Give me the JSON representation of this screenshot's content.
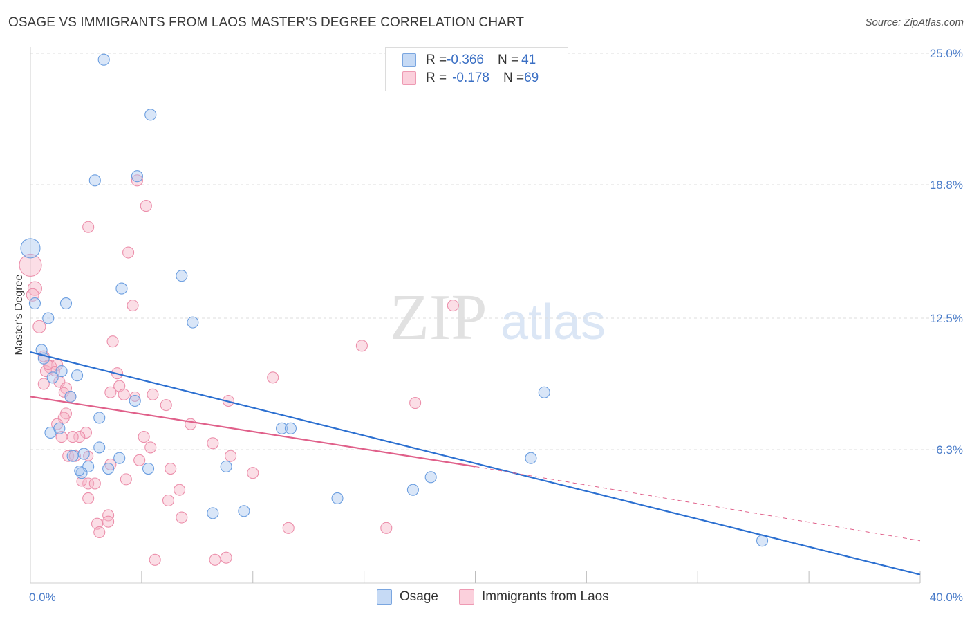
{
  "header": {
    "title": "OSAGE VS IMMIGRANTS FROM LAOS MASTER'S DEGREE CORRELATION CHART",
    "source": "Source: ZipAtlas.com"
  },
  "watermark": {
    "zip": "ZIP",
    "atlas": "atlas"
  },
  "legend_top": {
    "rows": [
      {
        "r_label": "R = ",
        "r_value": "-0.366",
        "n_label": "N = ",
        "n_value": "41"
      },
      {
        "r_label": "R = ",
        "r_value": "-0.178",
        "n_label": "N = ",
        "n_value": "69"
      }
    ]
  },
  "colors": {
    "osage_fill": "#aac8f0",
    "osage_stroke": "#6b9ee0",
    "osage_line": "#2b6fd0",
    "laos_fill": "#f7b6c8",
    "laos_stroke": "#ec8fab",
    "laos_line": "#e0608a"
  },
  "chart_data": {
    "type": "scatter",
    "title": "OSAGE VS IMMIGRANTS FROM LAOS MASTER'S DEGREE CORRELATION CHART",
    "xlabel": "",
    "ylabel": "Master's Degree",
    "xlim": [
      0,
      40
    ],
    "ylim": [
      0,
      25.5
    ],
    "x_tick_labels": [
      "0.0%",
      "40.0%"
    ],
    "y_ticks": [
      6.3,
      12.5,
      18.8,
      25.0
    ],
    "y_tick_labels": [
      "6.3%",
      "12.5%",
      "18.8%",
      "25.0%"
    ],
    "grid": true,
    "legend_position": "bottom",
    "series": [
      {
        "name": "Osage",
        "r": -0.366,
        "n": 41,
        "trend": {
          "x0": 0,
          "y0": 10.9,
          "x1": 40,
          "y1": 0.4
        },
        "points": [
          [
            0,
            15.8,
            14
          ],
          [
            3.3,
            24.7,
            8
          ],
          [
            5.4,
            22.1,
            8
          ],
          [
            2.9,
            19.0,
            8
          ],
          [
            4.8,
            19.2,
            8
          ],
          [
            6.8,
            14.5,
            8
          ],
          [
            4.1,
            13.9,
            8
          ],
          [
            1.6,
            13.2,
            8
          ],
          [
            0.2,
            13.2,
            8
          ],
          [
            0.8,
            12.5,
            8
          ],
          [
            7.3,
            12.3,
            8
          ],
          [
            0.5,
            11.0,
            8
          ],
          [
            0.6,
            10.6,
            8
          ],
          [
            1.4,
            10.0,
            8
          ],
          [
            2.1,
            9.8,
            8
          ],
          [
            1.0,
            9.7,
            8
          ],
          [
            1.8,
            8.8,
            8
          ],
          [
            4.7,
            8.6,
            8
          ],
          [
            23.1,
            9.0,
            8
          ],
          [
            3.1,
            7.8,
            8
          ],
          [
            0.9,
            7.1,
            8
          ],
          [
            1.3,
            7.3,
            8
          ],
          [
            11.3,
            7.3,
            8
          ],
          [
            11.7,
            7.3,
            8
          ],
          [
            3.1,
            6.4,
            8
          ],
          [
            2.4,
            6.1,
            8
          ],
          [
            1.9,
            6.0,
            8
          ],
          [
            4.0,
            5.9,
            8
          ],
          [
            22.5,
            5.9,
            8
          ],
          [
            2.6,
            5.5,
            8
          ],
          [
            3.5,
            5.4,
            8
          ],
          [
            5.3,
            5.4,
            8
          ],
          [
            8.8,
            5.5,
            8
          ],
          [
            2.3,
            5.2,
            8
          ],
          [
            18.0,
            5.0,
            8
          ],
          [
            17.2,
            4.4,
            8
          ],
          [
            13.8,
            4.0,
            8
          ],
          [
            8.2,
            3.3,
            8
          ],
          [
            9.6,
            3.4,
            8
          ],
          [
            32.9,
            2.0,
            8
          ],
          [
            2.2,
            5.3,
            7
          ]
        ]
      },
      {
        "name": "Immigrants from Laos",
        "r": -0.178,
        "n": 69,
        "trend": {
          "x0": 0,
          "y0": 8.8,
          "x1": 20,
          "y1": 5.5
        },
        "trend_dashed": {
          "x0": 20,
          "y0": 5.5,
          "x1": 40,
          "y1": 2.0
        },
        "points": [
          [
            0,
            15.0,
            16
          ],
          [
            0.2,
            13.9,
            10
          ],
          [
            0.1,
            13.6,
            9
          ],
          [
            4.8,
            19.0,
            8
          ],
          [
            5.2,
            17.8,
            8
          ],
          [
            2.6,
            16.8,
            8
          ],
          [
            4.4,
            15.6,
            8
          ],
          [
            4.6,
            13.1,
            8
          ],
          [
            19.0,
            13.1,
            8
          ],
          [
            0.4,
            12.1,
            9
          ],
          [
            3.7,
            11.4,
            8
          ],
          [
            14.9,
            11.2,
            8
          ],
          [
            0.6,
            10.7,
            8
          ],
          [
            1.2,
            10.3,
            8
          ],
          [
            0.9,
            10.2,
            9
          ],
          [
            0.7,
            10.0,
            8
          ],
          [
            3.9,
            9.9,
            8
          ],
          [
            10.9,
            9.7,
            8
          ],
          [
            1.3,
            9.5,
            8
          ],
          [
            0.6,
            9.4,
            8
          ],
          [
            4.0,
            9.3,
            8
          ],
          [
            1.6,
            9.2,
            8
          ],
          [
            3.6,
            9.0,
            8
          ],
          [
            4.2,
            8.9,
            8
          ],
          [
            5.5,
            8.9,
            8
          ],
          [
            1.8,
            8.8,
            8
          ],
          [
            8.9,
            8.6,
            8
          ],
          [
            17.3,
            8.5,
            8
          ],
          [
            6.1,
            8.4,
            8
          ],
          [
            1.6,
            8.0,
            8
          ],
          [
            1.5,
            7.8,
            8
          ],
          [
            1.2,
            7.5,
            8
          ],
          [
            7.2,
            7.5,
            8
          ],
          [
            2.5,
            7.1,
            8
          ],
          [
            1.4,
            6.9,
            8
          ],
          [
            2.2,
            6.9,
            8
          ],
          [
            1.9,
            6.9,
            8
          ],
          [
            5.1,
            6.9,
            8
          ],
          [
            8.2,
            6.6,
            8
          ],
          [
            5.4,
            6.4,
            8
          ],
          [
            1.7,
            6.0,
            8
          ],
          [
            2.0,
            6.0,
            8
          ],
          [
            9.0,
            6.0,
            8
          ],
          [
            4.9,
            5.8,
            8
          ],
          [
            3.6,
            5.6,
            8
          ],
          [
            6.3,
            5.4,
            8
          ],
          [
            10.0,
            5.2,
            8
          ],
          [
            4.3,
            4.9,
            8
          ],
          [
            2.6,
            4.7,
            8
          ],
          [
            2.9,
            4.7,
            8
          ],
          [
            6.7,
            4.4,
            8
          ],
          [
            2.6,
            4.0,
            8
          ],
          [
            6.2,
            3.9,
            8
          ],
          [
            3.5,
            3.2,
            8
          ],
          [
            3.5,
            2.9,
            8
          ],
          [
            3.0,
            2.8,
            8
          ],
          [
            6.8,
            3.1,
            8
          ],
          [
            11.6,
            2.6,
            8
          ],
          [
            16.0,
            2.6,
            8
          ],
          [
            3.1,
            2.4,
            8
          ],
          [
            5.6,
            1.1,
            8
          ],
          [
            8.3,
            1.1,
            8
          ],
          [
            8.8,
            1.2,
            8
          ],
          [
            2.6,
            6.0,
            7
          ],
          [
            1.1,
            10.0,
            7
          ],
          [
            0.8,
            10.3,
            7
          ],
          [
            2.3,
            4.8,
            7
          ],
          [
            4.7,
            8.8,
            7
          ],
          [
            1.5,
            9.0,
            7
          ]
        ]
      }
    ]
  }
}
